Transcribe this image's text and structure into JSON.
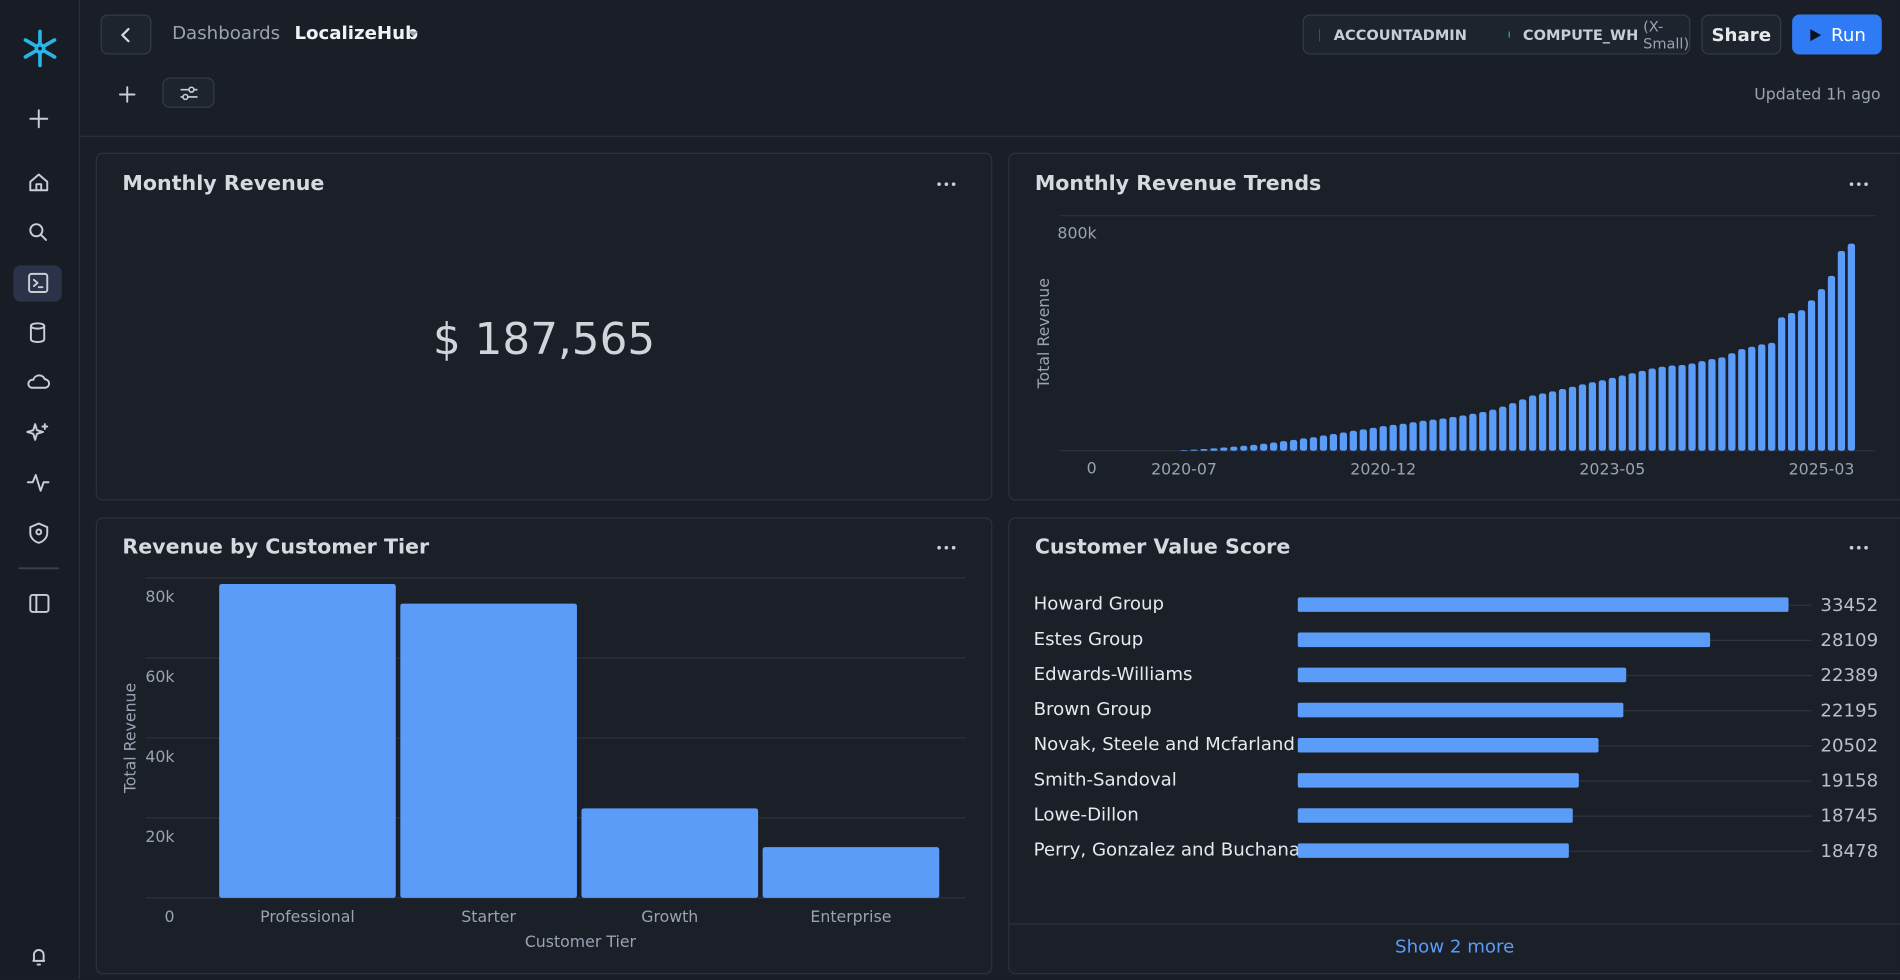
{
  "header": {
    "breadcrumb": "Dashboards",
    "title": "LocalizeHub",
    "role": "ACCOUNTADMIN",
    "warehouse": "COMPUTE_WH",
    "warehouse_size": "(X-Small)",
    "share": "Share",
    "run": "Run",
    "updated": "Updated 1h ago"
  },
  "kpi": {
    "title": "Monthly Revenue",
    "value": "$ 187,565"
  },
  "show_more": "Show 2 more",
  "chart_data": [
    {
      "type": "bar",
      "title": "Monthly Revenue Trends",
      "y_label": "Total Revenue",
      "categories": [
        "2020-07",
        null,
        null,
        null,
        null,
        null,
        null,
        null,
        null,
        null,
        null,
        null,
        null,
        null,
        null,
        null,
        null,
        null,
        null,
        null,
        "2020-12",
        null,
        null,
        null,
        null,
        null,
        null,
        null,
        null,
        null,
        null,
        null,
        null,
        null,
        null,
        null,
        null,
        null,
        null,
        null,
        null,
        null,
        null,
        "2023-05",
        null,
        null,
        null,
        null,
        null,
        null,
        null,
        null,
        null,
        null,
        null,
        null,
        null,
        null,
        null,
        null,
        null,
        null,
        null,
        null,
        "2025-03",
        null,
        null,
        null
      ],
      "values": [
        2000,
        4000,
        6000,
        8000,
        11000,
        14000,
        17000,
        20000,
        24000,
        28000,
        33000,
        37000,
        42000,
        46000,
        52000,
        57000,
        62000,
        68000,
        73000,
        78000,
        84000,
        88000,
        92000,
        97000,
        102000,
        106000,
        110000,
        115000,
        120000,
        126000,
        132000,
        140000,
        150000,
        162000,
        175000,
        188000,
        195000,
        202000,
        210000,
        218000,
        226000,
        233000,
        240000,
        248000,
        256000,
        264000,
        272000,
        280000,
        286000,
        290000,
        292000,
        297000,
        305000,
        312000,
        318000,
        332000,
        346000,
        354000,
        362000,
        367000,
        454000,
        469000,
        478000,
        512000,
        550000,
        595000,
        680000,
        705000
      ],
      "color": "#5b9cf8",
      "ylim": [
        0,
        800000
      ],
      "yticks": [
        0,
        {
          "value": 800000,
          "label": "800k"
        }
      ],
      "grid": true
    },
    {
      "type": "bar",
      "title": "Revenue by Customer Tier",
      "x_label": "Customer Tier",
      "y_label": "Total Revenue",
      "categories": [
        "Professional",
        "Starter",
        "Growth",
        "Enterprise"
      ],
      "values": [
        78500,
        73600,
        22400,
        12700
      ],
      "color": "#5b9cf8",
      "ylim": [
        0,
        80000
      ],
      "yticks": [
        0,
        {
          "value": 20000,
          "label": "20k"
        },
        {
          "value": 40000,
          "label": "40k"
        },
        {
          "value": 60000,
          "label": "60k"
        },
        {
          "value": 80000,
          "label": "80k"
        }
      ],
      "grid": true
    },
    {
      "type": "bar",
      "orientation": "horizontal",
      "title": "Customer Value Score",
      "categories": [
        "Howard Group",
        "Estes Group",
        "Edwards-Williams",
        "Brown Group",
        "Novak, Steele and Mcfarland",
        "Smith-Sandoval",
        "Lowe-Dillon",
        "Perry, Gonzalez and Buchanan"
      ],
      "values": [
        33452,
        28109,
        22389,
        22195,
        20502,
        19158,
        18745,
        18478
      ],
      "color": "#5b9cf8"
    }
  ]
}
